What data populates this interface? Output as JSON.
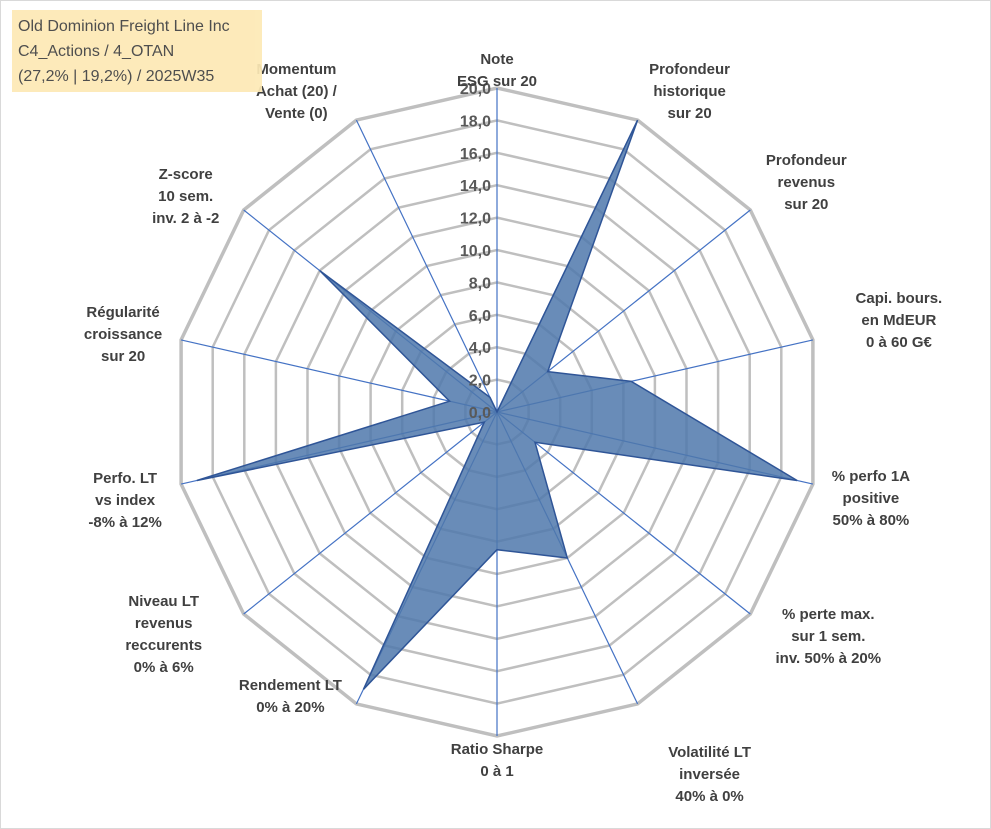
{
  "title_box": {
    "line1": "Old Dominion Freight Line Inc",
    "line2": "C4_Actions / 4_OTAN",
    "line3": "(27,2% | 19,2%) / 2025W35"
  },
  "colors": {
    "series_fill": "#4f78ab",
    "series_stroke": "#2f5597",
    "grid": "#bfbfbf",
    "spoke": "#4472c4",
    "title_box_bg": "#fde9b5",
    "label_text": "#404040",
    "tick_text": "#595959"
  },
  "chart_data": {
    "type": "radar",
    "title": "",
    "ylim": [
      0,
      20
    ],
    "tick_step": 2,
    "tick_labels": [
      "0,0",
      "2,0",
      "4,0",
      "6,0",
      "8,0",
      "10,0",
      "12,0",
      "14,0",
      "16,0",
      "18,0",
      "20,0"
    ],
    "grid": true,
    "legend": "none",
    "categories": [
      "Note\nESG sur 20",
      "Profondeur\nhistorique\nsur 20",
      "Profondeur\nrevenus\nsur 20",
      "Capi. bours.\nen MdEUR\n0 à 60 G€",
      "% perfo 1A\npositive\n50% à 80%",
      "% perte max.\nsur 1 sem.\ninv. 50% à 20%",
      "Volatilité LT\ninversée\n40% à 0%",
      "Ratio Sharpe\n0 à 1",
      "Rendement LT\n0% à 20%",
      "Niveau LT\nrevenus\nreccurents\n0% à 6%",
      "Perfo. LT\nvs index\n-8% à 12%",
      "Régularité\ncroissance\nsur 20",
      "Z-score\n10 sem.\ninv. 2 à -2",
      "Momentum\nAchat (20) /\nVente (0)"
    ],
    "series": [
      {
        "values": [
          0,
          20,
          4,
          8.5,
          19,
          3,
          10,
          8.5,
          19,
          1,
          19,
          3,
          14,
          1
        ]
      }
    ]
  }
}
